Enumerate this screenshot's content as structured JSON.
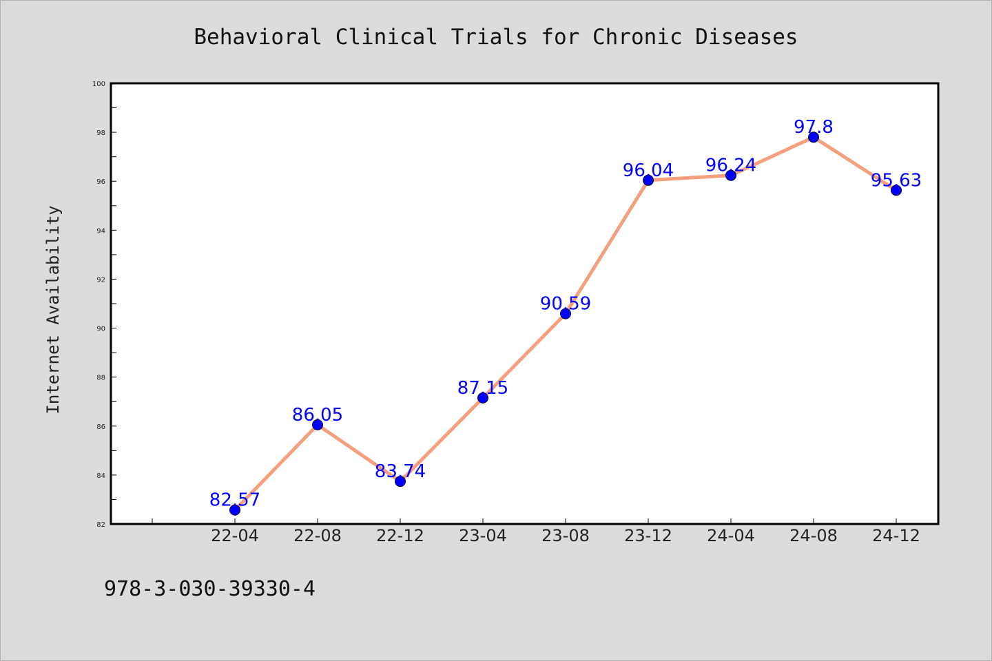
{
  "chart_data": {
    "type": "line",
    "title": "Behavioral Clinical Trials for Chronic Diseases",
    "xlabel": "",
    "ylabel": "Internet Availability",
    "categories": [
      "22-04",
      "22-08",
      "22-12",
      "23-04",
      "23-08",
      "23-12",
      "24-04",
      "24-08",
      "24-12"
    ],
    "series": [
      {
        "values": [
          82.57,
          86.05,
          83.74,
          87.15,
          90.59,
          96.04,
          96.24,
          97.8,
          95.63
        ]
      }
    ],
    "data_labels": [
      "82.57",
      "86.05",
      "83.74",
      "87.15",
      "90.59",
      "96.04",
      "96.24",
      "97.8",
      "95.63"
    ],
    "ylim": [
      82,
      100
    ],
    "yticks": [
      82,
      84,
      86,
      88,
      90,
      92,
      94,
      96,
      98,
      100
    ],
    "grid": false,
    "legend": "none",
    "colors": {
      "line": "#f4a07f",
      "marker": "#0000ff",
      "label": "#0000ff",
      "background": "#dcdcdc",
      "plot_area": "#ffffff"
    }
  },
  "annotation": {
    "text": "978-3-030-39330-4"
  }
}
